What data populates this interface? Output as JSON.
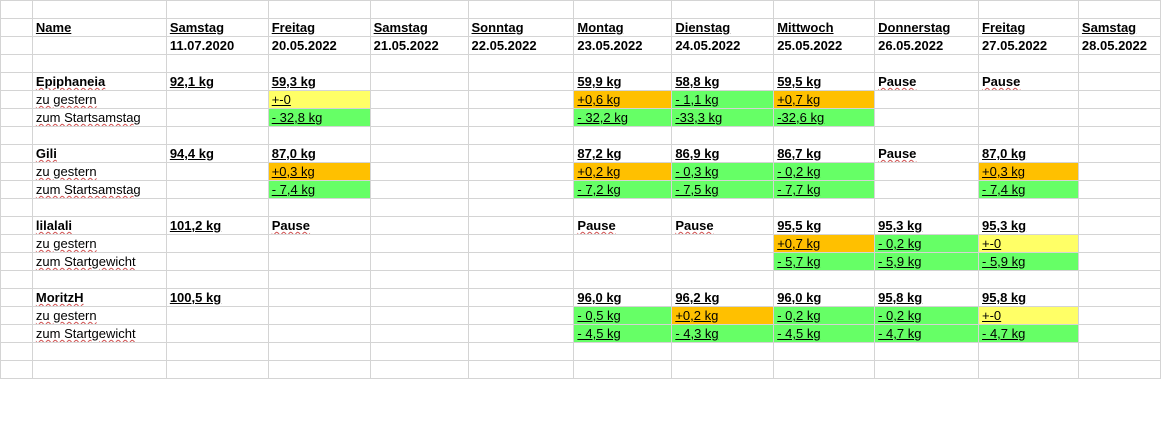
{
  "sheet": {
    "header_top": [
      "Name",
      "Samstag",
      "Freitag",
      "Samstag",
      "Sonntag",
      "Montag",
      "Dienstag",
      "Mittwoch",
      "Donnerstag",
      "Freitag",
      "Samstag"
    ],
    "header_dates": [
      "",
      "11.07.2020",
      "20.05.2022",
      "21.05.2022",
      "22.05.2022",
      "23.05.2022",
      "24.05.2022",
      "25.05.2022",
      "26.05.2022",
      "27.05.2022",
      "28.05.2022"
    ],
    "blocks": [
      {
        "name": "Epiphaneia",
        "rows": [
          [
            "Epiphaneia",
            "92,1 kg",
            "59,3 kg",
            "",
            "",
            "59,9 kg",
            "58,8 kg",
            "59,5 kg",
            "Pause",
            "Pause",
            ""
          ],
          [
            "zu gestern",
            "",
            "+-0",
            "",
            "",
            "+0,6 kg",
            "- 1,1 kg",
            "+0,7 kg",
            "",
            "",
            ""
          ],
          [
            "zum Startsamstag",
            "",
            "- 32,8 kg",
            "",
            "",
            "- 32,2 kg",
            "-33,3 kg",
            "-32,6 kg",
            "",
            "",
            ""
          ]
        ]
      },
      {
        "name": "Gili",
        "rows": [
          [
            "Gili",
            "94,4 kg",
            "87,0 kg",
            "",
            "",
            "87,2 kg",
            "86,9 kg",
            "86,7 kg",
            "Pause",
            "87,0 kg",
            ""
          ],
          [
            "zu gestern",
            "",
            "+0,3 kg",
            "",
            "",
            "+0,2 kg",
            "- 0,3 kg",
            "- 0,2 kg",
            "",
            "+0,3 kg",
            ""
          ],
          [
            "zum Startsamstag",
            "",
            "- 7,4 kg",
            "",
            "",
            "- 7,2 kg",
            "- 7,5 kg",
            "- 7,7 kg",
            "",
            "- 7,4 kg",
            ""
          ]
        ]
      },
      {
        "name": "lilalali",
        "rows": [
          [
            "lilalali",
            "101,2 kg",
            "Pause",
            "",
            "",
            "Pause",
            "Pause",
            "95,5 kg",
            "95,3 kg",
            "95,3 kg",
            ""
          ],
          [
            "zu gestern",
            "",
            "",
            "",
            "",
            "",
            "",
            "+0,7 kg",
            "- 0,2 kg",
            "+-0",
            ""
          ],
          [
            "zum Startgewicht",
            "",
            "",
            "",
            "",
            "",
            "",
            "- 5,7 kg",
            "- 5,9 kg",
            "- 5,9 kg",
            ""
          ]
        ]
      },
      {
        "name": "MoritzH",
        "rows": [
          [
            "MoritzH",
            "100,5 kg",
            "",
            "",
            "",
            "96,0 kg",
            "96,2 kg",
            "96,0 kg",
            "95,8 kg",
            "95,8 kg",
            ""
          ],
          [
            "zu gestern",
            "",
            "",
            "",
            "",
            "- 0,5 kg",
            "+0,2 kg",
            "- 0,2 kg",
            "- 0,2 kg",
            "+-0",
            ""
          ],
          [
            "zum Startgewicht",
            "",
            "",
            "",
            "",
            "- 4,5 kg",
            "- 4,3 kg",
            "- 4,5 kg",
            "- 4,7 kg",
            "- 4,7 kg",
            ""
          ]
        ]
      }
    ],
    "cell_colors": {
      "green": "#66ff66",
      "orange": "#ffc000",
      "yellow": "#ffff66"
    }
  }
}
